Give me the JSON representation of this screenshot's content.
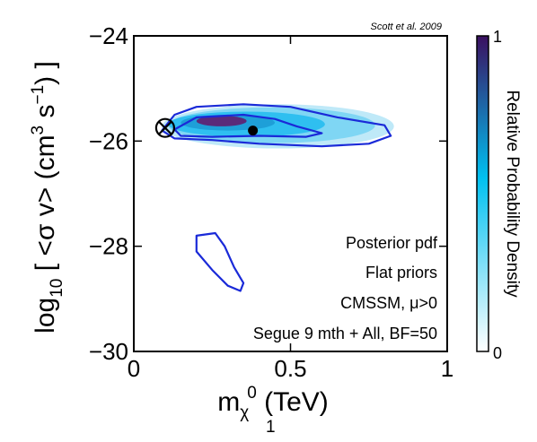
{
  "chart_data": {
    "type": "contour",
    "credit": "Scott et al. 2009",
    "xlabel": {
      "main": "m",
      "sub": "χ",
      "subsub": "1",
      "sup": "0",
      "unit": " (TeV)"
    },
    "ylabel": {
      "pre": "log",
      "sub": "10",
      "mid": " [ <σ v> (cm",
      "sup1": "3",
      "mid2": " s",
      "sup2": "−1",
      "post": ") ]"
    },
    "xlim": [
      0,
      1
    ],
    "ylim": [
      -30,
      -24
    ],
    "xticks": [
      0,
      0.5,
      1
    ],
    "xtick_labels": [
      "0",
      "0.5",
      "1"
    ],
    "yticks": [
      -30,
      -28,
      -26,
      -24
    ],
    "ytick_labels": [
      "−30",
      "−28",
      "−26",
      "−24"
    ],
    "colorbar": {
      "label": "Relative Probability Density",
      "min_label": "0",
      "max_label": "1",
      "low_color": "#ffffff",
      "mid_color": "#00c0f0",
      "high_color": "#3b1060"
    },
    "annotations": [
      "Posterior pdf",
      "Flat priors",
      "CMSSM, μ>0",
      "Segue 9 mth + All, BF=50"
    ],
    "markers": {
      "mean": {
        "x": 0.38,
        "y": -25.8
      },
      "best_fit": {
        "x": 0.1,
        "y": -25.75
      }
    },
    "contours": {
      "outer_main": [
        [
          0.09,
          -25.8
        ],
        [
          0.13,
          -25.5
        ],
        [
          0.2,
          -25.35
        ],
        [
          0.35,
          -25.3
        ],
        [
          0.5,
          -25.35
        ],
        [
          0.65,
          -25.55
        ],
        [
          0.8,
          -25.7
        ],
        [
          0.82,
          -25.9
        ],
        [
          0.75,
          -26.05
        ],
        [
          0.6,
          -26.1
        ],
        [
          0.4,
          -26.05
        ],
        [
          0.25,
          -25.98
        ],
        [
          0.13,
          -25.95
        ],
        [
          0.09,
          -25.8
        ]
      ],
      "inner_main": [
        [
          0.13,
          -25.78
        ],
        [
          0.2,
          -25.55
        ],
        [
          0.35,
          -25.5
        ],
        [
          0.45,
          -25.58
        ],
        [
          0.52,
          -25.72
        ],
        [
          0.6,
          -25.85
        ],
        [
          0.55,
          -25.92
        ],
        [
          0.4,
          -25.9
        ],
        [
          0.25,
          -25.92
        ],
        [
          0.15,
          -25.9
        ],
        [
          0.13,
          -25.78
        ]
      ],
      "outer_island": [
        [
          0.2,
          -27.8
        ],
        [
          0.26,
          -27.75
        ],
        [
          0.29,
          -28.0
        ],
        [
          0.32,
          -28.4
        ],
        [
          0.35,
          -28.7
        ],
        [
          0.34,
          -28.85
        ],
        [
          0.3,
          -28.75
        ],
        [
          0.25,
          -28.45
        ],
        [
          0.2,
          -28.1
        ],
        [
          0.2,
          -27.8
        ]
      ]
    },
    "density_blobs": [
      {
        "x": 0.46,
        "y": -25.72,
        "rx": 0.37,
        "ry": 0.42,
        "color": "#bfe9f8"
      },
      {
        "x": 0.44,
        "y": -25.7,
        "rx": 0.33,
        "ry": 0.34,
        "color": "#7fd6f4"
      },
      {
        "x": 0.36,
        "y": -25.68,
        "rx": 0.25,
        "ry": 0.24,
        "color": "#2fbff0"
      },
      {
        "x": 0.3,
        "y": -25.65,
        "rx": 0.15,
        "ry": 0.15,
        "color": "#1e9fd8"
      },
      {
        "x": 0.28,
        "y": -25.62,
        "rx": 0.08,
        "ry": 0.1,
        "color": "#5a2a7a"
      }
    ]
  }
}
